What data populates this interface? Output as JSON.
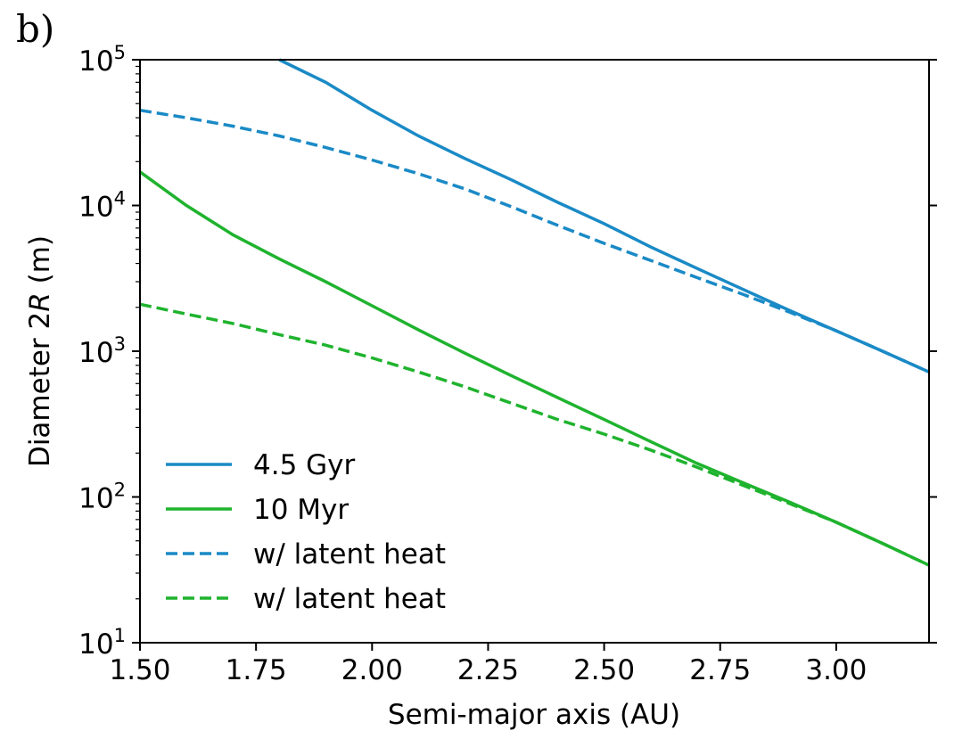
{
  "panel_label": "b)",
  "chart_data": {
    "type": "line",
    "xlabel": "Semi-major axis (AU)",
    "ylabel_prefix": "Diameter 2",
    "ylabel_var": "R",
    "ylabel_suffix": " (m)",
    "xlim": [
      1.5,
      3.2
    ],
    "ylim": [
      10,
      100000
    ],
    "yscale": "log",
    "grid": false,
    "legend_position": "lower-left",
    "x_ticks": [
      {
        "value": 1.5,
        "label": "1.50"
      },
      {
        "value": 1.75,
        "label": "1.75"
      },
      {
        "value": 2.0,
        "label": "2.00"
      },
      {
        "value": 2.25,
        "label": "2.25"
      },
      {
        "value": 2.5,
        "label": "2.50"
      },
      {
        "value": 2.75,
        "label": "2.75"
      },
      {
        "value": 3.0,
        "label": "3.00"
      }
    ],
    "y_ticks": [
      {
        "exp": 1,
        "base": "10",
        "sup": "1"
      },
      {
        "exp": 2,
        "base": "10",
        "sup": "2"
      },
      {
        "exp": 3,
        "base": "10",
        "sup": "3"
      },
      {
        "exp": 4,
        "base": "10",
        "sup": "4"
      },
      {
        "exp": 5,
        "base": "10",
        "sup": "5"
      }
    ],
    "series": [
      {
        "name": "4.5 Gyr",
        "color": "#1a8ac6",
        "style": "solid",
        "x": [
          1.8,
          1.9,
          2.0,
          2.1,
          2.2,
          2.3,
          2.4,
          2.5,
          2.6,
          2.7,
          2.8,
          2.9,
          3.0,
          3.1,
          3.2
        ],
        "y": [
          100000,
          70000,
          45000,
          30000,
          21000,
          15000,
          10500,
          7500,
          5200,
          3700,
          2650,
          1900,
          1380,
          1000,
          720
        ]
      },
      {
        "name": "10 Myr",
        "color": "#1fb32e",
        "style": "solid",
        "x": [
          1.5,
          1.6,
          1.7,
          1.8,
          1.9,
          2.0,
          2.1,
          2.2,
          2.3,
          2.4,
          2.5,
          2.6,
          2.7,
          2.8,
          2.9,
          3.0,
          3.1,
          3.2
        ],
        "y": [
          17000,
          10000,
          6300,
          4300,
          3000,
          2050,
          1400,
          970,
          680,
          480,
          340,
          240,
          170,
          125,
          92,
          67,
          48,
          34
        ]
      },
      {
        "name": "w/ latent heat",
        "color": "#1a8ac6",
        "style": "dashed",
        "x": [
          1.5,
          1.6,
          1.7,
          1.8,
          1.9,
          2.0,
          2.1,
          2.2,
          2.3,
          2.4,
          2.5,
          2.6,
          2.7,
          2.8,
          2.9,
          3.0,
          3.1,
          3.2
        ],
        "y": [
          45000,
          40000,
          35000,
          30000,
          25000,
          20500,
          16500,
          13000,
          9800,
          7300,
          5500,
          4200,
          3200,
          2450,
          1850,
          1380,
          1000,
          720
        ]
      },
      {
        "name": "w/ latent heat",
        "color": "#1fb32e",
        "style": "dashed",
        "x": [
          1.5,
          1.6,
          1.7,
          1.8,
          1.9,
          2.0,
          2.1,
          2.2,
          2.3,
          2.4,
          2.5,
          2.6,
          2.7,
          2.8,
          2.9,
          3.0,
          3.1,
          3.2
        ],
        "y": [
          2100,
          1800,
          1550,
          1300,
          1100,
          900,
          720,
          570,
          440,
          340,
          270,
          210,
          160,
          120,
          90,
          67,
          48,
          34
        ]
      }
    ]
  }
}
